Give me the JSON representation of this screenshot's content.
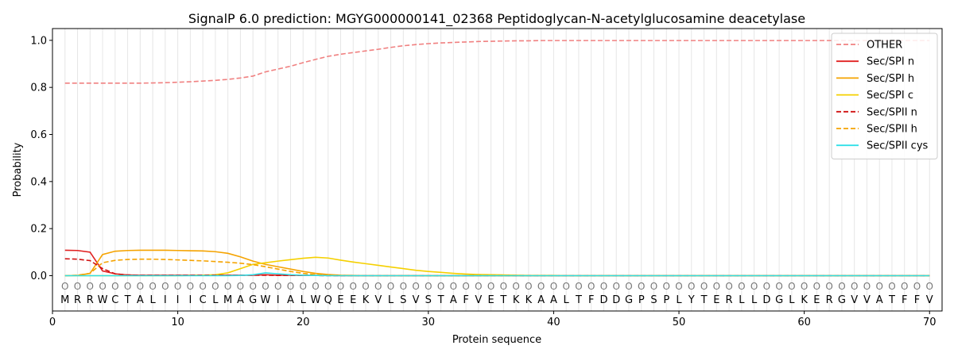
{
  "chart_data": {
    "type": "line",
    "title": "SignalP 6.0 prediction: MGYG000000141_02368 Peptidoglycan-N-acetylglucosamine deacetylase",
    "xlabel": "Protein sequence",
    "ylabel": "Probability",
    "xlim": [
      0,
      71
    ],
    "ylim": [
      -0.15,
      1.05
    ],
    "x_ticks": [
      0,
      10,
      20,
      30,
      40,
      50,
      60,
      70
    ],
    "y_ticks": [
      0.0,
      0.2,
      0.4,
      0.6,
      0.8,
      1.0
    ],
    "y_tick_labels": [
      "0.0",
      "0.2",
      "0.4",
      "0.6",
      "0.8",
      "1.0"
    ],
    "grid": "vertical lines at each residue",
    "legend_position": "top-right",
    "sequence": [
      "M",
      "R",
      "R",
      "W",
      "C",
      "T",
      "A",
      "L",
      "I",
      "I",
      "I",
      "C",
      "L",
      "M",
      "A",
      "G",
      "W",
      "I",
      "A",
      "L",
      "W",
      "Q",
      "E",
      "E",
      "K",
      "V",
      "L",
      "S",
      "V",
      "S",
      "T",
      "A",
      "F",
      "V",
      "E",
      "T",
      "K",
      "K",
      "A",
      "A",
      "L",
      "T",
      "F",
      "D",
      "D",
      "G",
      "P",
      "S",
      "P",
      "L",
      "Y",
      "T",
      "E",
      "R",
      "L",
      "L",
      "D",
      "G",
      "L",
      "K",
      "E",
      "R",
      "G",
      "V",
      "V",
      "A",
      "T",
      "F",
      "F",
      "V"
    ],
    "region_marker": "O",
    "series": [
      {
        "name": "OTHER",
        "color": "#f08080",
        "dash": "dashed",
        "values": [
          0.818,
          0.818,
          0.818,
          0.818,
          0.818,
          0.818,
          0.818,
          0.819,
          0.82,
          0.822,
          0.824,
          0.827,
          0.83,
          0.834,
          0.84,
          0.848,
          0.866,
          0.878,
          0.89,
          0.905,
          0.919,
          0.932,
          0.941,
          0.948,
          0.955,
          0.962,
          0.97,
          0.977,
          0.982,
          0.986,
          0.989,
          0.991,
          0.993,
          0.995,
          0.996,
          0.997,
          0.998,
          0.998,
          0.999,
          0.999,
          0.999,
          0.999,
          0.999,
          0.999,
          0.999,
          0.999,
          0.999,
          0.999,
          0.999,
          0.999,
          0.999,
          0.999,
          0.999,
          0.999,
          0.999,
          0.999,
          0.999,
          0.999,
          0.999,
          0.999,
          0.999,
          0.999,
          0.999,
          0.999,
          0.999,
          0.999,
          0.999,
          0.999,
          0.999,
          0.999
        ]
      },
      {
        "name": "Sec/SPI n",
        "color": "#e02020",
        "dash": "solid",
        "values": [
          0.108,
          0.107,
          0.1,
          0.02,
          0.008,
          0.003,
          0.002,
          0.002,
          0.002,
          0.002,
          0.002,
          0.002,
          0.002,
          0.002,
          0.002,
          0.002,
          0.004,
          0.002,
          0.002,
          0.001,
          0.001,
          0.001,
          0,
          0,
          0,
          0,
          0,
          0,
          0,
          0,
          0,
          0,
          0,
          0,
          0,
          0,
          0,
          0,
          0,
          0,
          0,
          0,
          0,
          0,
          0,
          0,
          0,
          0,
          0,
          0,
          0,
          0,
          0,
          0,
          0,
          0,
          0,
          0,
          0,
          0,
          0,
          0,
          0,
          0,
          0,
          0,
          0,
          0,
          0,
          0
        ]
      },
      {
        "name": "Sec/SPI h",
        "color": "#f5a300",
        "dash": "solid",
        "values": [
          0.0,
          0.001,
          0.01,
          0.09,
          0.104,
          0.107,
          0.108,
          0.108,
          0.108,
          0.107,
          0.106,
          0.105,
          0.102,
          0.095,
          0.08,
          0.062,
          0.048,
          0.038,
          0.028,
          0.018,
          0.01,
          0.005,
          0.002,
          0.001,
          0,
          0,
          0,
          0,
          0,
          0,
          0,
          0,
          0,
          0,
          0,
          0,
          0,
          0,
          0,
          0,
          0,
          0,
          0,
          0,
          0,
          0,
          0,
          0,
          0,
          0,
          0,
          0,
          0,
          0,
          0,
          0,
          0,
          0,
          0,
          0,
          0,
          0,
          0,
          0,
          0,
          0,
          0,
          0,
          0,
          0
        ]
      },
      {
        "name": "Sec/SPI c",
        "color": "#f5d000",
        "dash": "solid",
        "values": [
          0,
          0,
          0,
          0,
          0,
          0,
          0,
          0,
          0,
          0,
          0.001,
          0.002,
          0.004,
          0.012,
          0.03,
          0.048,
          0.055,
          0.062,
          0.068,
          0.074,
          0.078,
          0.075,
          0.066,
          0.058,
          0.051,
          0.044,
          0.037,
          0.03,
          0.023,
          0.018,
          0.014,
          0.01,
          0.007,
          0.005,
          0.004,
          0.003,
          0.002,
          0.001,
          0.001,
          0.001,
          0,
          0,
          0,
          0,
          0,
          0,
          0,
          0,
          0,
          0,
          0,
          0,
          0,
          0,
          0,
          0,
          0,
          0,
          0,
          0,
          0,
          0,
          0,
          0,
          0,
          0,
          0,
          0,
          0,
          0
        ]
      },
      {
        "name": "Sec/SPII n",
        "color": "#d01010",
        "dash": "dashed",
        "values": [
          0.072,
          0.07,
          0.064,
          0.03,
          0.008,
          0.003,
          0.002,
          0.002,
          0.002,
          0.002,
          0.002,
          0.002,
          0.002,
          0.002,
          0.002,
          0.002,
          0.002,
          0.001,
          0.001,
          0.001,
          0.001,
          0,
          0,
          0,
          0,
          0,
          0,
          0,
          0,
          0,
          0,
          0,
          0,
          0,
          0,
          0,
          0,
          0,
          0,
          0,
          0,
          0,
          0,
          0,
          0,
          0,
          0,
          0,
          0,
          0,
          0,
          0,
          0,
          0,
          0,
          0,
          0,
          0,
          0,
          0,
          0,
          0,
          0,
          0,
          0,
          0,
          0,
          0,
          0,
          0
        ]
      },
      {
        "name": "Sec/SPII h",
        "color": "#f5a300",
        "dash": "dashed",
        "values": [
          0.0,
          0.002,
          0.01,
          0.055,
          0.065,
          0.069,
          0.07,
          0.07,
          0.069,
          0.067,
          0.065,
          0.063,
          0.06,
          0.057,
          0.053,
          0.047,
          0.038,
          0.028,
          0.018,
          0.01,
          0.004,
          0.002,
          0.001,
          0,
          0,
          0,
          0,
          0,
          0,
          0,
          0,
          0,
          0,
          0,
          0,
          0,
          0,
          0,
          0,
          0,
          0,
          0,
          0,
          0,
          0,
          0,
          0,
          0,
          0,
          0,
          0,
          0,
          0,
          0,
          0,
          0,
          0,
          0,
          0,
          0,
          0,
          0,
          0,
          0,
          0,
          0,
          0,
          0,
          0,
          0
        ]
      },
      {
        "name": "Sec/SPII cys",
        "color": "#30e0e8",
        "dash": "solid",
        "values": [
          0,
          0,
          0,
          0,
          0,
          0,
          0,
          0,
          0,
          0,
          0,
          0,
          0,
          0,
          0.001,
          0.004,
          0.012,
          0.008,
          0.004,
          0.002,
          0.001,
          0,
          0,
          0,
          0,
          0,
          0,
          0,
          0,
          0,
          0,
          0,
          0,
          0,
          0,
          0,
          0,
          0,
          0,
          0,
          0,
          0,
          0,
          0,
          0,
          0,
          0,
          0,
          0,
          0,
          0,
          0,
          0,
          0,
          0,
          0,
          0,
          0,
          0,
          0,
          0,
          0,
          0,
          0,
          0,
          0,
          0,
          0,
          0,
          0
        ]
      }
    ]
  }
}
